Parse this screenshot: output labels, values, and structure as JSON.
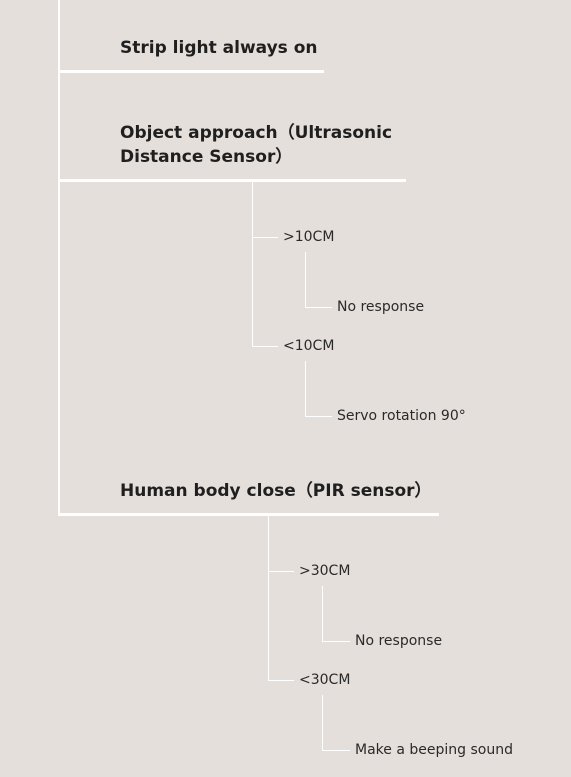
{
  "nodes": {
    "strip_light": "Strip light always on",
    "object_approach_line1": "Object approach（Ultrasonic",
    "object_approach_line2": "Distance Sensor）",
    "obj_gt": ">10CM",
    "obj_gt_result": "No response",
    "obj_lt": "<10CM",
    "obj_lt_result": "Servo rotation 90°",
    "human_body": "Human body close（PIR sensor）",
    "pir_gt": ">30CM",
    "pir_gt_result": "No response",
    "pir_lt": "<30CM",
    "pir_lt_result": "Make a beeping sound"
  }
}
